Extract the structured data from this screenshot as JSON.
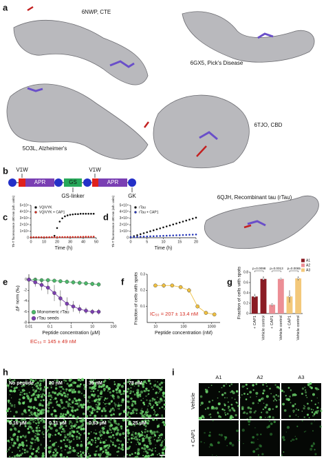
{
  "panel_a": {
    "letter": "a",
    "labels": [
      "6NWP, CTE",
      "6GX5, Pick's Disease",
      "5O3L, Alzheimer's",
      "6TJO, CBD",
      "6QJH, Recombinant tau (rTau)"
    ]
  },
  "panel_b": {
    "letter": "b",
    "v1w": [
      "V1W",
      "V1W"
    ],
    "apr": [
      "APR",
      "APR"
    ],
    "gs": "GS",
    "linker": "GS-linker",
    "gk": "GK"
  },
  "chart_data": [
    {
      "letter": "c",
      "type": "dots",
      "xlabel": "Time (h)",
      "ylabel": "Th-T fluorescence 480 nm (arb. units)",
      "xlim": [
        0,
        50
      ],
      "xticks": [
        0,
        10,
        20,
        30,
        40,
        50
      ],
      "ylim": [
        0,
        50000
      ],
      "yticks": [
        0,
        {
          "value": 10000,
          "label": "1×10⁴"
        },
        {
          "value": 20000,
          "label": "2×10⁴"
        },
        {
          "value": 30000,
          "label": "3×10⁴"
        },
        {
          "value": 40000,
          "label": "4×10⁴"
        },
        {
          "value": 50000,
          "label": "5×10⁴"
        }
      ],
      "x": [
        0,
        2,
        4,
        6,
        8,
        10,
        12,
        14,
        16,
        18,
        20,
        22,
        24,
        26,
        28,
        30,
        32,
        34,
        36,
        38,
        40,
        42,
        44,
        46,
        48
      ],
      "series": [
        {
          "name": "VQIVYK",
          "color": "#111111",
          "values": [
            500,
            500,
            500,
            500,
            500,
            500,
            500,
            600,
            800,
            3000,
            15000,
            25000,
            30000,
            33000,
            34500,
            35500,
            36000,
            36500,
            36500,
            37000,
            37000,
            37000,
            37000,
            37000,
            37000
          ]
        },
        {
          "name": "VQIVYK + CAP1",
          "color": "#d42a1e",
          "values": [
            800,
            800,
            800,
            800,
            800,
            800,
            800,
            800,
            900,
            900,
            900,
            1000,
            1000,
            1000,
            1100,
            1100,
            1200,
            1200,
            1300,
            1300,
            1400,
            1500,
            1500,
            1600,
            1700
          ]
        }
      ],
      "legend": "top-left"
    },
    {
      "letter": "d",
      "type": "dots",
      "xlabel": "Time (h)",
      "ylabel": "Th-T fluorescence 480 nm (arb. units)",
      "xlim": [
        0,
        20
      ],
      "xticks": [
        0,
        5,
        10,
        15,
        20
      ],
      "ylim": [
        0,
        50000
      ],
      "yticks": [
        0,
        {
          "value": 10000,
          "label": "1×10⁴"
        },
        {
          "value": 20000,
          "label": "2×10⁴"
        },
        {
          "value": 30000,
          "label": "3×10⁴"
        },
        {
          "value": 40000,
          "label": "4×10⁴"
        },
        {
          "value": 50000,
          "label": "5×10⁴"
        }
      ],
      "x": [
        0,
        1,
        2,
        3,
        4,
        5,
        6,
        7,
        8,
        9,
        10,
        11,
        12,
        13,
        14,
        15,
        16,
        17,
        18,
        19,
        20
      ],
      "series": [
        {
          "name": "rTau",
          "color": "#111111",
          "values": [
            1000,
            2500,
            4000,
            5500,
            7000,
            8500,
            10000,
            11500,
            13000,
            14500,
            16000,
            17500,
            19000,
            20500,
            22000,
            23500,
            25000,
            26500,
            28000,
            29500,
            31000
          ]
        },
        {
          "name": "rTau + CAP1",
          "color": "#2434b8",
          "values": [
            1000,
            1200,
            1400,
            1600,
            1800,
            2000,
            2200,
            2400,
            2600,
            2800,
            3000,
            3200,
            3400,
            3600,
            3800,
            4000,
            4200,
            4400,
            4600,
            4800,
            5000
          ]
        }
      ],
      "legend": "top-left"
    },
    {
      "letter": "e",
      "type": "points",
      "xlabel": "Peptide concentration (μM)",
      "ylabel": "ΔF norm (‰)",
      "xlog": true,
      "xlim": [
        0.01,
        100
      ],
      "xticks": [
        0.01,
        0.1,
        1,
        10,
        100
      ],
      "ylim": [
        -8,
        1
      ],
      "yticks": [
        0,
        -2,
        -4,
        -6,
        -8
      ],
      "x": [
        0.01,
        0.02,
        0.04,
        0.08,
        0.16,
        0.31,
        0.63,
        1.25,
        2.5,
        5,
        10,
        20
      ],
      "series": [
        {
          "name": "Monomeric rTau",
          "color": "#4cb86a",
          "values": [
            0,
            0,
            -0.1,
            -0.1,
            -0.2,
            -0.3,
            -0.4,
            -0.5,
            -0.6,
            -0.7,
            -0.8,
            -0.9
          ],
          "errors": [
            0.3,
            0.3,
            0.3,
            0.3,
            0.3,
            0.3,
            0.4,
            0.4,
            0.4,
            0.4,
            0.4,
            0.4
          ]
        },
        {
          "name": "rTau seeds",
          "color": "#7b3fb0",
          "values": [
            0,
            -0.5,
            -1,
            -1.5,
            -2.5,
            -3.5,
            -4.5,
            -5,
            -5.5,
            -5.8,
            -6,
            -6
          ],
          "errors": [
            0.5,
            0.8,
            1,
            1.2,
            1.5,
            1.5,
            1.2,
            1,
            0.8,
            0.6,
            0.5,
            0.5
          ]
        }
      ],
      "legend": "bottom-left",
      "annotation": "EC₅₀ = 145 ± 49 nM",
      "annotation_color": "#d42a1e"
    },
    {
      "letter": "f",
      "type": "points",
      "xlabel": "Peptide concentration (nM)",
      "ylabel": "Fraction of cells with spots",
      "xlog": true,
      "xlim": [
        5,
        2000
      ],
      "xticks": [
        10,
        100,
        1000
      ],
      "ylim": [
        0,
        0.3
      ],
      "yticks": [
        0.1,
        0.2,
        0.3
      ],
      "x": [
        9.8,
        19.5,
        39,
        78,
        156,
        313,
        625,
        1250
      ],
      "series": [
        {
          "color": "#f0c040",
          "values": [
            0.23,
            0.23,
            0.23,
            0.22,
            0.2,
            0.1,
            0.06,
            0.05
          ],
          "errors": [
            0.01,
            0.015,
            0.01,
            0.01,
            0.015,
            0.01,
            0.01,
            0.005
          ]
        }
      ],
      "annotation": "IC₅₀ = 207 ± 13.4 nM",
      "annotation_color": "#d42a1e"
    },
    {
      "letter": "g",
      "type": "bar",
      "ylabel": "Fraction of cells with spots",
      "categories": [
        "+ CAP1",
        "Vehicle control"
      ],
      "ylim": [
        0,
        0.8
      ],
      "yticks": [
        0,
        0.2,
        0.4,
        0.6,
        0.8
      ],
      "series": [
        {
          "name": "A1",
          "color": "#8b1c24",
          "values": [
            0.33,
            0.67
          ],
          "errors": [
            0.05,
            0.05
          ]
        },
        {
          "name": "A2",
          "color": "#ec8e95",
          "values": [
            0.17,
            0.67
          ],
          "errors": [
            0.03,
            0.01
          ]
        },
        {
          "name": "A3",
          "color": "#f3c87a",
          "values": [
            0.33,
            0.68
          ],
          "errors": [
            0.12,
            0.04
          ]
        }
      ],
      "pvalues": [
        "p=0.0098",
        "p=0.0013",
        "p=0.0065"
      ],
      "legend": "top-right"
    }
  ],
  "panel_h": {
    "letter": "h",
    "labels": [
      "No peptide",
      "20 nM",
      "39 nM",
      "78 nM",
      "0.16 μM",
      "0.31 μM",
      "0.63 μM",
      "1.25 μM"
    ]
  },
  "panel_i": {
    "letter": "i",
    "columns": [
      "A1",
      "A2",
      "A3"
    ],
    "rows": [
      "Vehicle",
      "+ CAP1"
    ]
  }
}
